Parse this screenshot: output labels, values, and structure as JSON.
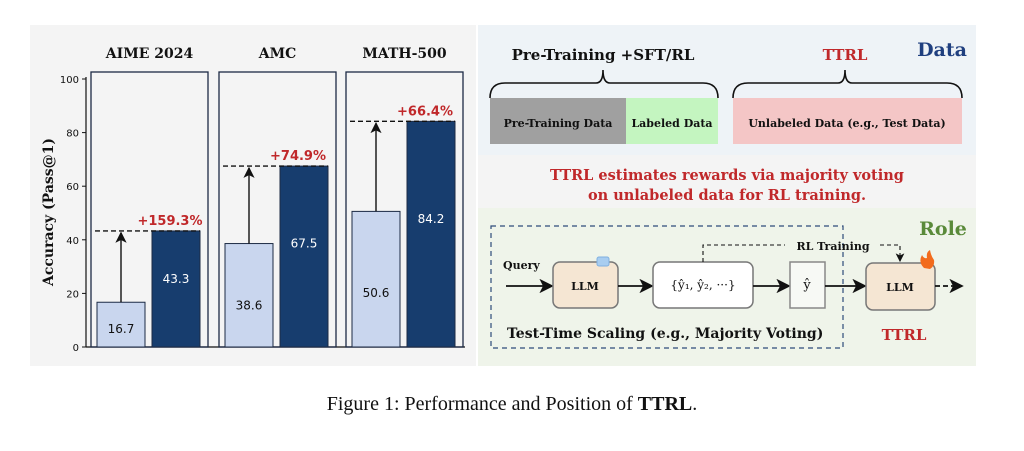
{
  "chart_data": {
    "type": "bar",
    "ylabel": "Accuracy (Pass@1)",
    "ylim": [
      0,
      100
    ],
    "yticks": [
      "0",
      "20",
      "40",
      "60",
      "80",
      "100"
    ],
    "grid": false,
    "panels": [
      {
        "title": "AIME 2024",
        "values": [
          16.7,
          43.3
        ],
        "labels": [
          "16.7",
          "43.3"
        ],
        "gain": "+159.3%"
      },
      {
        "title": "AMC",
        "values": [
          38.6,
          67.5
        ],
        "labels": [
          "38.6",
          "67.5"
        ],
        "gain": "+74.9%"
      },
      {
        "title": "MATH-500",
        "values": [
          50.6,
          84.2
        ],
        "labels": [
          "50.6",
          "84.2"
        ],
        "gain": "+66.4%"
      }
    ],
    "colors": {
      "before": "#c9d6ee",
      "after": "#173d6e",
      "gain": "#c0282a"
    }
  },
  "diagram": {
    "data_label": "Data",
    "role_label": "Role",
    "pretrain_title": "Pre-Training +SFT/RL",
    "ttrl_title": "TTRL",
    "pretrain_data": "Pre-Training Data",
    "labeled_data": "Labeled Data",
    "unlabeled_data": "Unlabeled Data (e.g., Test Data)",
    "summary_line1": "TTRL estimates rewards via majority voting",
    "summary_line2": "on unlabeled data for RL training.",
    "query": "Query",
    "llm_frozen": "LLM",
    "samples": "{ŷ₁, ŷ₂, ···}",
    "answer": "ŷ",
    "rl_training": "RL Training",
    "llm_trained": "LLM",
    "tts_label": "Test-Time Scaling (e.g., Majority Voting)",
    "ttrl_label": "TTRL",
    "icons": {
      "frozen": "ice-cube-icon",
      "trained": "fire-icon"
    },
    "colors": {
      "data": "#1f3f7f",
      "role": "#5a8a3a",
      "red": "#c0282a"
    }
  },
  "caption": {
    "prefix": "Figure 1: Performance and Position of ",
    "bold": "TTRL",
    "suffix": "."
  }
}
